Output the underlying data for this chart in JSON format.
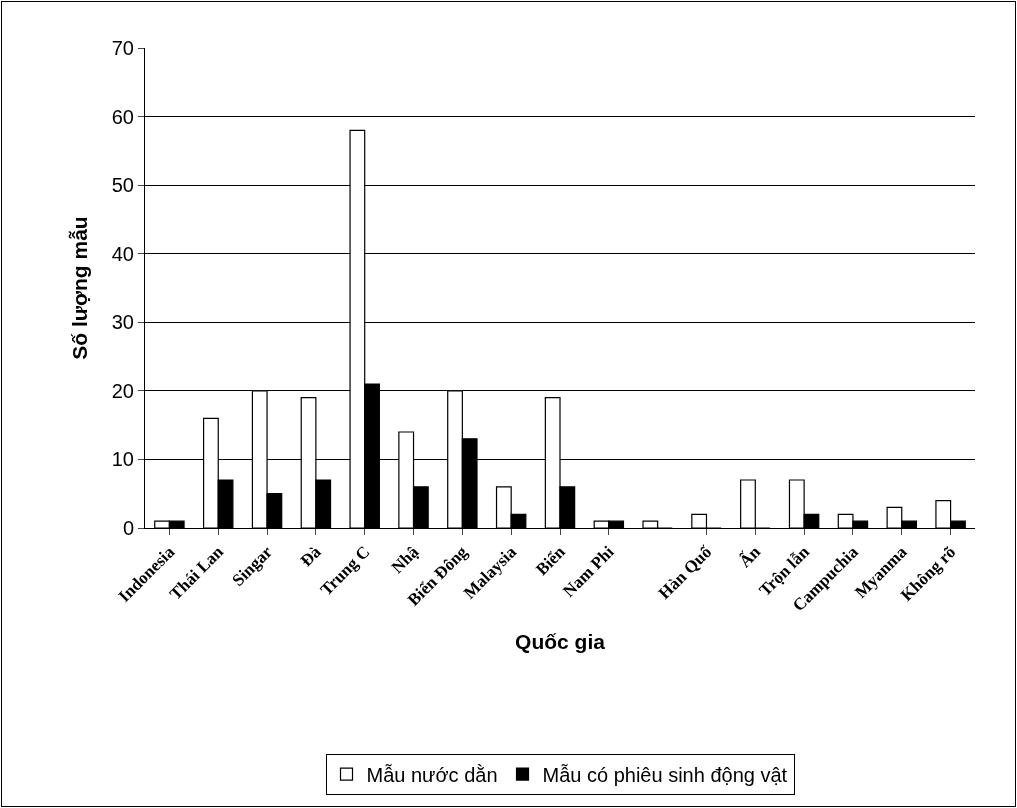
{
  "chart_data": {
    "type": "bar",
    "xlabel": "Quốc gia",
    "ylabel": "Số lượng mẫu",
    "categories": [
      "Indonesia",
      "Thái Lan",
      "Singar",
      "Đà",
      "Trung C",
      "Nhậ",
      "Biển Đông",
      "Malaysia",
      "Biển",
      "Nam Phi",
      null,
      "Hàn Quố",
      "Ấn",
      "Trộn lẫn",
      "Campuchia",
      "Myanma",
      "Không rõ"
    ],
    "series": [
      {
        "name": "Mẫu nước dằn",
        "color": "#ffffff",
        "values": [
          1,
          16,
          20,
          19,
          58,
          14,
          20,
          6,
          19,
          1,
          1,
          2,
          7,
          7,
          2,
          3,
          4
        ]
      },
      {
        "name": "Mẫu có phiêu sinh động vật",
        "color": "#000000",
        "values": [
          1,
          7,
          5,
          7,
          21,
          6,
          13,
          2,
          6,
          1,
          0,
          0,
          0,
          2,
          1,
          1,
          1
        ]
      }
    ],
    "ylim": [
      0,
      70
    ],
    "yticks": [
      0,
      10,
      20,
      30,
      40,
      50,
      60,
      70
    ],
    "grid": "y",
    "legend": "bottom"
  }
}
